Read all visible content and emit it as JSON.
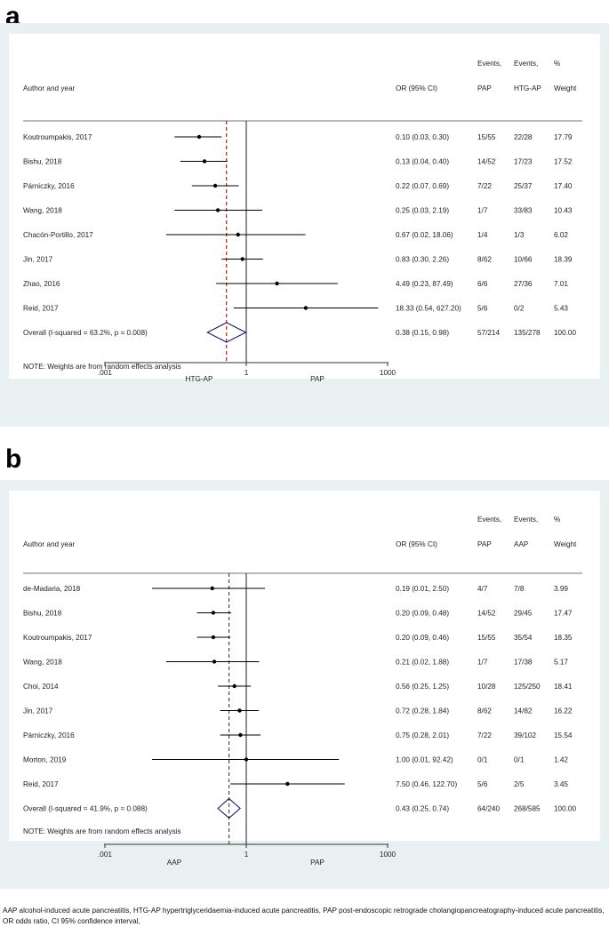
{
  "footer_note": "AAP alcohol-induced acute pancreatitis, HTG-AP hypertriglyceridaemia-induced acute pancreatitis, PAP post-endoscopic retrograde cholangiopancreatography-induced acute pancreatitis, OR odds ratio, CI 95% confidence interval,",
  "chart_data": [
    {
      "panel": "a",
      "type": "forest",
      "headers": {
        "author": "Author and year",
        "or": "OR (95% CI)",
        "events1_top": "Events,",
        "events1_bottom": "PAP",
        "events2_top": "Events,",
        "events2_bottom": "HTG-AP",
        "weight_top": "%",
        "weight_bottom": "Weight"
      },
      "studies": [
        {
          "name": "Koutroumpakis, 2017",
          "or": 0.1,
          "lo": 0.03,
          "hi": 0.3,
          "or_text": "0.10 (0.03, 0.30)",
          "ev1": "15/55",
          "ev2": "22/28",
          "weight": "17.79"
        },
        {
          "name": "Bishu, 2018",
          "or": 0.13,
          "lo": 0.04,
          "hi": 0.4,
          "or_text": "0.13 (0.04, 0.40)",
          "ev1": "14/52",
          "ev2": "17/23",
          "weight": "17.52"
        },
        {
          "name": "Párniczky, 2016",
          "or": 0.22,
          "lo": 0.07,
          "hi": 0.69,
          "or_text": "0.22 (0.07, 0.69)",
          "ev1": "7/22",
          "ev2": "25/37",
          "weight": "17.40"
        },
        {
          "name": "Wang, 2018",
          "or": 0.25,
          "lo": 0.03,
          "hi": 2.19,
          "or_text": "0.25 (0.03, 2.19)",
          "ev1": "1/7",
          "ev2": "33/83",
          "weight": "10.43"
        },
        {
          "name": "Chacón-Portillo, 2017",
          "or": 0.67,
          "lo": 0.02,
          "hi": 18.06,
          "or_text": "0.67 (0.02, 18.06)",
          "ev1": "1/4",
          "ev2": "1/3",
          "weight": "6.02"
        },
        {
          "name": "Jin, 2017",
          "or": 0.83,
          "lo": 0.3,
          "hi": 2.26,
          "or_text": "0.83 (0.30, 2.26)",
          "ev1": "8/62",
          "ev2": "10/66",
          "weight": "18.39"
        },
        {
          "name": "Zhao, 2016",
          "or": 4.49,
          "lo": 0.23,
          "hi": 87.49,
          "or_text": "4.49 (0.23, 87.49)",
          "ev1": "6/6",
          "ev2": "27/36",
          "weight": "7.01"
        },
        {
          "name": "Reid, 2017",
          "or": 18.33,
          "lo": 0.54,
          "hi": 627.2,
          "or_text": "18.33 (0.54, 627.20)",
          "ev1": "5/6",
          "ev2": "0/2",
          "weight": "5.43"
        }
      ],
      "overall": {
        "name": "Overall  (I-squared = 63.2%, p = 0.008)",
        "or": 0.38,
        "lo": 0.15,
        "hi": 0.98,
        "or_text": "0.38 (0.15, 0.98)",
        "ev1": "57/214",
        "ev2": "135/278",
        "weight": "100.00"
      },
      "note": "NOTE: Weights are from random effects analysis",
      "x_scale": "log",
      "xlim": [
        0.001,
        1000
      ],
      "x_ticks": [
        {
          "value": 0.001,
          "label": ".001"
        },
        {
          "value": 1,
          "label": "1"
        },
        {
          "value": 1000,
          "label": "1000"
        }
      ],
      "favours_left": "HTG-AP",
      "favours_right": "PAP",
      "colors": {
        "overall_line": "#8b1a1a",
        "diamond": "#1a1a6b",
        "marker": "#000000"
      }
    },
    {
      "panel": "b",
      "type": "forest",
      "headers": {
        "author": "Author and year",
        "or": "OR (95% CI)",
        "events1_top": "Events,",
        "events1_bottom": "PAP",
        "events2_top": "Events,",
        "events2_bottom": "AAP",
        "weight_top": "%",
        "weight_bottom": "Weight"
      },
      "studies": [
        {
          "name": "de-Madaria, 2018",
          "or": 0.19,
          "lo": 0.01,
          "hi": 2.5,
          "or_text": "0.19 (0.01, 2.50)",
          "ev1": "4/7",
          "ev2": "7/8",
          "weight": "3.99"
        },
        {
          "name": "Bishu, 2018",
          "or": 0.2,
          "lo": 0.09,
          "hi": 0.48,
          "or_text": "0.20 (0.09, 0.48)",
          "ev1": "14/52",
          "ev2": "29/45",
          "weight": "17.47"
        },
        {
          "name": "Koutroumpakis, 2017",
          "or": 0.2,
          "lo": 0.09,
          "hi": 0.46,
          "or_text": "0.20 (0.09, 0.46)",
          "ev1": "15/55",
          "ev2": "35/54",
          "weight": "18.35"
        },
        {
          "name": "Wang, 2018",
          "or": 0.21,
          "lo": 0.02,
          "hi": 1.88,
          "or_text": "0.21 (0.02, 1.88)",
          "ev1": "1/7",
          "ev2": "17/38",
          "weight": "5.17"
        },
        {
          "name": "Choi, 2014",
          "or": 0.56,
          "lo": 0.25,
          "hi": 1.25,
          "or_text": "0.56 (0.25, 1.25)",
          "ev1": "10/28",
          "ev2": "125/250",
          "weight": "18.41"
        },
        {
          "name": "Jin, 2017",
          "or": 0.72,
          "lo": 0.28,
          "hi": 1.84,
          "or_text": "0.72 (0.28, 1.84)",
          "ev1": "8/62",
          "ev2": "14/82",
          "weight": "16.22"
        },
        {
          "name": "Párniczky, 2016",
          "or": 0.75,
          "lo": 0.28,
          "hi": 2.01,
          "or_text": "0.75 (0.28, 2.01)",
          "ev1": "7/22",
          "ev2": "39/102",
          "weight": "15.54"
        },
        {
          "name": "Morton, 2019",
          "or": 1.0,
          "lo": 0.01,
          "hi": 92.42,
          "or_text": "1.00 (0.01, 92.42)",
          "ev1": "0/1",
          "ev2": "0/1",
          "weight": "1.42"
        },
        {
          "name": "Reid, 2017",
          "or": 7.5,
          "lo": 0.46,
          "hi": 122.7,
          "or_text": "7.50 (0.46, 122.70)",
          "ev1": "5/6",
          "ev2": "2/5",
          "weight": "3.45"
        }
      ],
      "overall": {
        "name": "Overall  (I-squared = 41.9%, p = 0.088)",
        "or": 0.43,
        "lo": 0.25,
        "hi": 0.74,
        "or_text": "0.43 (0.25, 0.74)",
        "ev1": "64/240",
        "ev2": "268/585",
        "weight": "100.00"
      },
      "note": "NOTE: Weights are from random effects analysis",
      "x_scale": "log",
      "xlim": [
        0.001,
        1000
      ],
      "x_ticks": [
        {
          "value": 0.001,
          "label": ".001"
        },
        {
          "value": 1,
          "label": "1"
        },
        {
          "value": 1000,
          "label": "1000"
        }
      ],
      "favours_left": "AAP",
      "favours_right": "PAP",
      "colors": {
        "overall_line": "#8b1a1a",
        "diamond": "#1a1a6b",
        "marker": "#000000"
      }
    }
  ],
  "panel_labels": [
    "a",
    "b"
  ]
}
